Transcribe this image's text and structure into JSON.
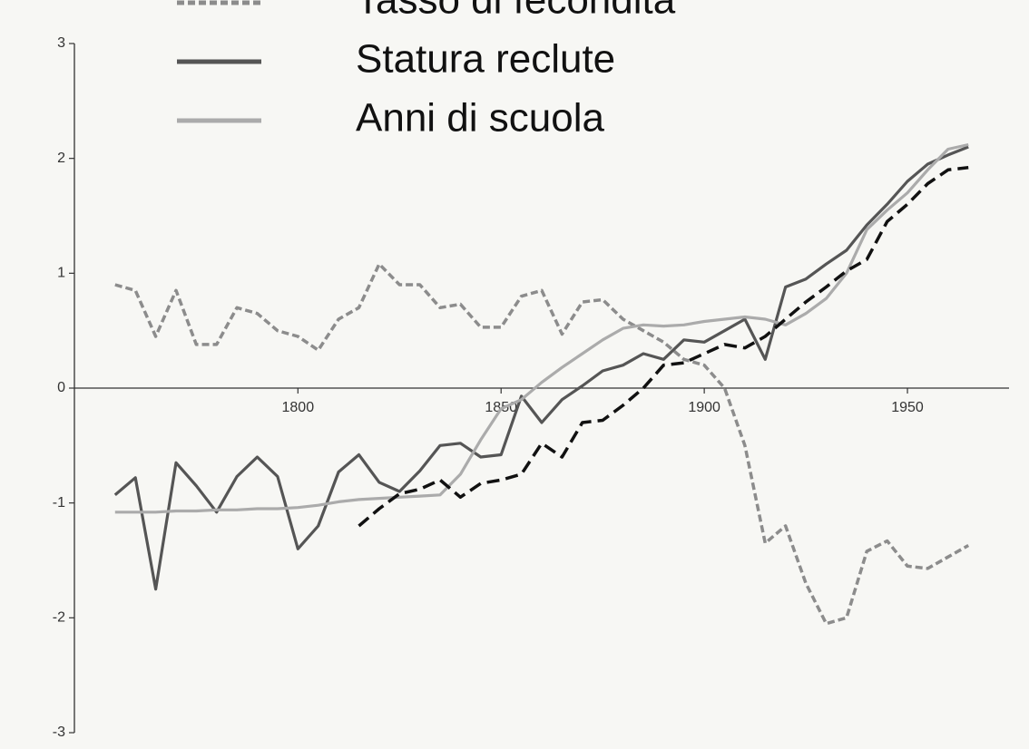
{
  "chart_data": {
    "type": "line",
    "x": [
      1755,
      1760,
      1765,
      1770,
      1775,
      1780,
      1785,
      1790,
      1795,
      1800,
      1805,
      1810,
      1815,
      1820,
      1825,
      1830,
      1835,
      1840,
      1845,
      1850,
      1855,
      1860,
      1865,
      1870,
      1875,
      1880,
      1885,
      1890,
      1895,
      1900,
      1905,
      1910,
      1915,
      1920,
      1925,
      1930,
      1935,
      1940,
      1945,
      1950,
      1955,
      1960,
      1965
    ],
    "series": [
      {
        "name": "Tasso di fecondità",
        "color": "#8c8c8c",
        "style": "dashed",
        "values": [
          0.9,
          0.85,
          0.45,
          0.85,
          0.38,
          0.38,
          0.7,
          0.65,
          0.5,
          0.45,
          0.33,
          0.6,
          0.7,
          1.08,
          0.9,
          0.9,
          0.7,
          0.73,
          0.53,
          0.53,
          0.8,
          0.85,
          0.47,
          0.75,
          0.77,
          0.6,
          0.5,
          0.4,
          0.25,
          0.2,
          0,
          -0.5,
          -1.35,
          -1.2,
          -1.7,
          -2.05,
          -2.0,
          -1.42,
          -1.33,
          -1.55,
          -1.57,
          -1.47,
          -1.37
        ]
      },
      {
        "name": "Statura reclute",
        "color": "#555555",
        "style": "solid",
        "values": [
          -0.93,
          -0.78,
          -1.75,
          -0.65,
          -0.85,
          -1.08,
          -0.77,
          -0.6,
          -0.77,
          -1.4,
          -1.2,
          -0.73,
          -0.58,
          -0.82,
          -0.9,
          -0.72,
          -0.5,
          -0.48,
          -0.6,
          -0.58,
          -0.07,
          -0.3,
          -0.1,
          0.02,
          0.15,
          0.2,
          0.3,
          0.25,
          0.42,
          0.4,
          0.5,
          0.6,
          0.25,
          0.88,
          0.95,
          1.08,
          1.2,
          1.42,
          1.6,
          1.8,
          1.95,
          2.03,
          2.1
        ]
      },
      {
        "name": "Anni di scuola",
        "color": "#ababab",
        "style": "solid",
        "values": [
          -1.08,
          -1.08,
          -1.08,
          -1.07,
          -1.07,
          -1.06,
          -1.06,
          -1.05,
          -1.05,
          -1.04,
          -1.02,
          -0.99,
          -0.97,
          -0.96,
          -0.95,
          -0.94,
          -0.93,
          -0.75,
          -0.45,
          -0.18,
          -0.1,
          0.05,
          0.18,
          0.3,
          0.42,
          0.52,
          0.55,
          0.54,
          0.55,
          0.58,
          0.6,
          0.62,
          0.6,
          0.55,
          0.65,
          0.78,
          1.0,
          1.38,
          1.55,
          1.7,
          1.9,
          2.08,
          2.12
        ]
      },
      {
        "color": "#111111",
        "style": "dashed",
        "values": [
          null,
          null,
          null,
          null,
          null,
          null,
          null,
          null,
          null,
          null,
          null,
          null,
          -1.2,
          -1.05,
          -0.92,
          -0.88,
          -0.8,
          -0.95,
          -0.83,
          -0.8,
          -0.75,
          -0.48,
          -0.6,
          -0.3,
          -0.28,
          -0.15,
          0,
          0.2,
          0.22,
          0.3,
          0.38,
          0.35,
          0.45,
          0.6,
          0.75,
          0.88,
          1.02,
          1.12,
          1.45,
          1.6,
          1.78,
          1.9,
          1.92
        ]
      }
    ],
    "xlim": [
      1745,
      1975
    ],
    "xticks": [
      1800,
      1850,
      1900,
      1950
    ],
    "ylim": [
      -3,
      3
    ],
    "yticks": [
      -3,
      -2,
      -1,
      0,
      1,
      2,
      3
    ]
  }
}
